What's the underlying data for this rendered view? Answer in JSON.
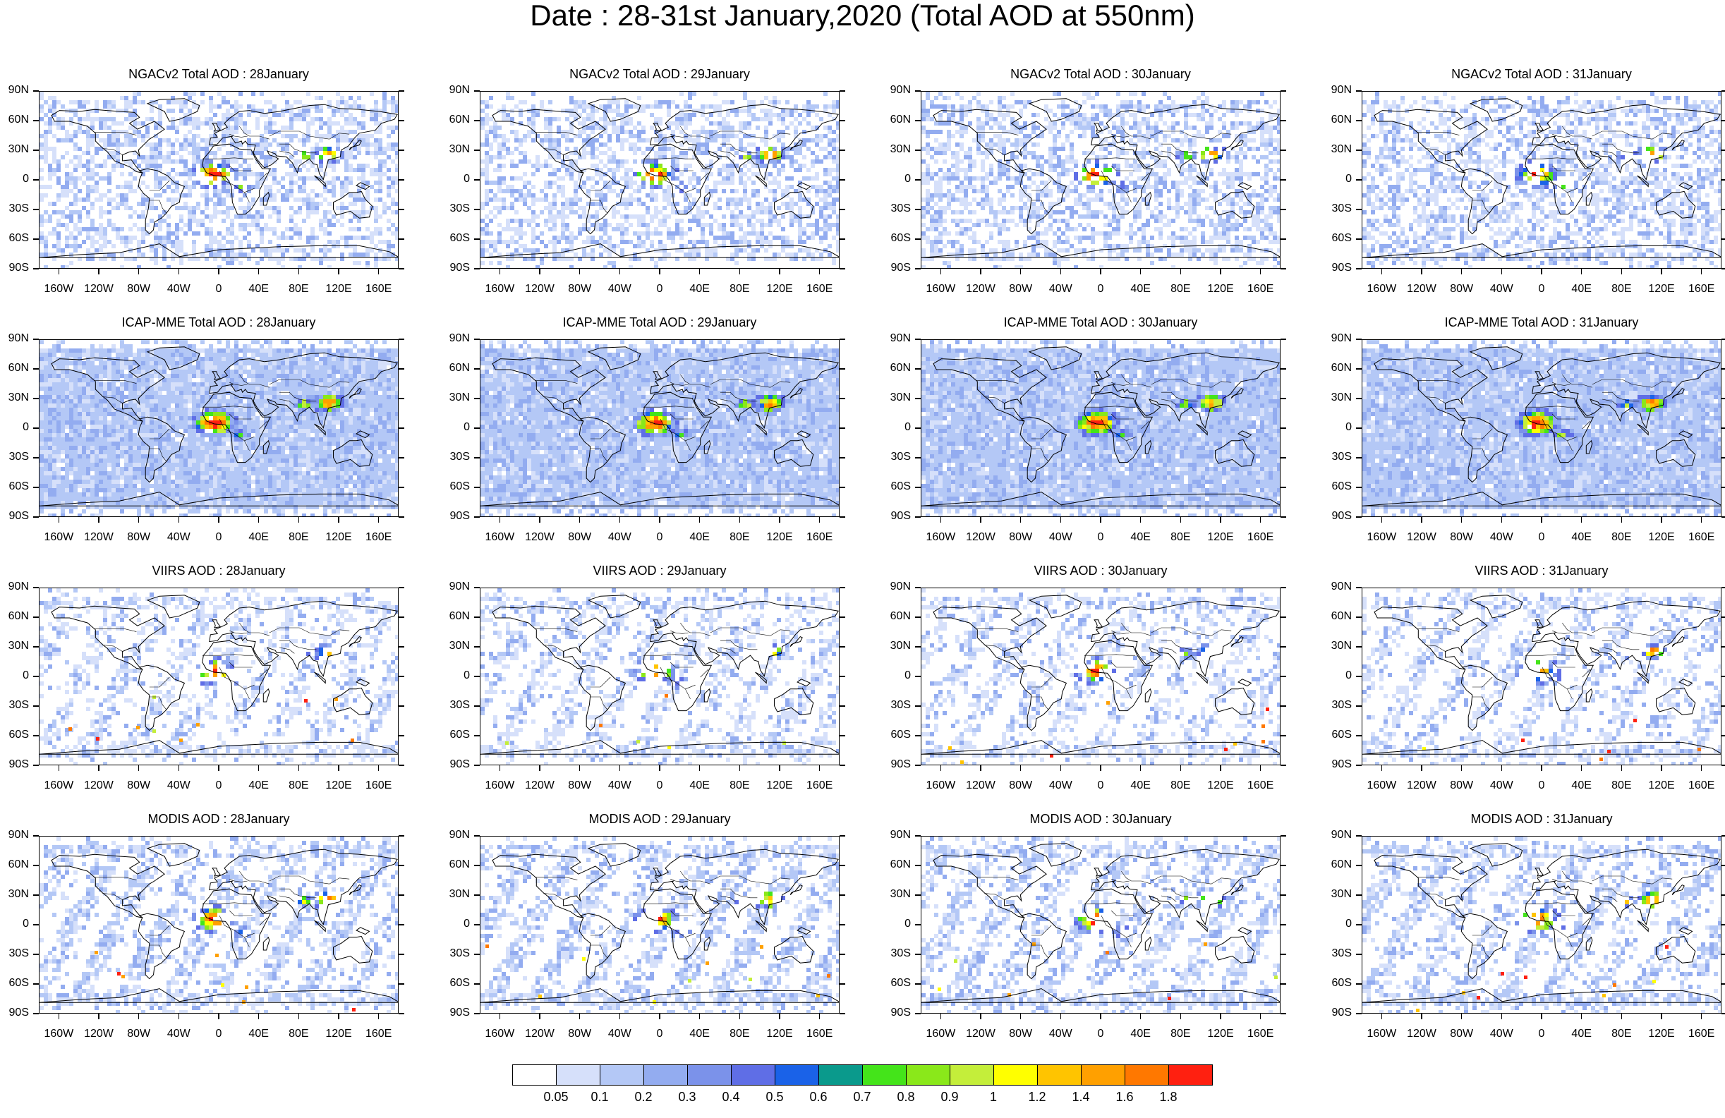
{
  "title": "Date : 28-31st January,2020 (Total AOD at 550nm)",
  "rows": [
    {
      "product": "NGACv2 Total AOD",
      "panels": [
        {
          "title": "NGACv2 Total AOD : 28January"
        },
        {
          "title": "NGACv2 Total AOD : 29January"
        },
        {
          "title": "NGACv2 Total AOD : 30January"
        },
        {
          "title": "NGACv2 Total AOD : 31January"
        }
      ]
    },
    {
      "product": "ICAP-MME Total AOD",
      "panels": [
        {
          "title": "ICAP-MME Total AOD : 28January"
        },
        {
          "title": "ICAP-MME Total AOD : 29January"
        },
        {
          "title": "ICAP-MME Total AOD : 30January"
        },
        {
          "title": "ICAP-MME Total AOD : 31January"
        }
      ]
    },
    {
      "product": "VIIRS AOD",
      "panels": [
        {
          "title": "VIIRS AOD : 28January"
        },
        {
          "title": "VIIRS AOD : 29January"
        },
        {
          "title": "VIIRS AOD : 30January"
        },
        {
          "title": "VIIRS AOD : 31January"
        }
      ]
    },
    {
      "product": "MODIS AOD",
      "panels": [
        {
          "title": "MODIS AOD : 28January"
        },
        {
          "title": "MODIS AOD : 29January"
        },
        {
          "title": "MODIS AOD : 30January"
        },
        {
          "title": "MODIS AOD : 31January"
        }
      ]
    }
  ],
  "lat_labels": [
    "90N",
    "60N",
    "30N",
    "0",
    "30S",
    "60S",
    "90S"
  ],
  "lon_labels": [
    "160W",
    "120W",
    "80W",
    "40W",
    "0",
    "40E",
    "80E",
    "120E",
    "160E"
  ],
  "colorbar": {
    "levels": [
      "0.05",
      "0.1",
      "0.2",
      "0.3",
      "0.4",
      "0.5",
      "0.6",
      "0.7",
      "0.8",
      "0.9",
      "1",
      "1.2",
      "1.4",
      "1.6",
      "1.8"
    ],
    "colors": [
      "#ffffff",
      "#d6e0fa",
      "#b4c8f6",
      "#93acf0",
      "#7b92ea",
      "#5f6ee6",
      "#1a62e8",
      "#0a9a8c",
      "#44e41a",
      "#8ae81a",
      "#c4ee3a",
      "#ffff00",
      "#ffc400",
      "#ffa000",
      "#ff7800",
      "#ff2010"
    ]
  }
}
